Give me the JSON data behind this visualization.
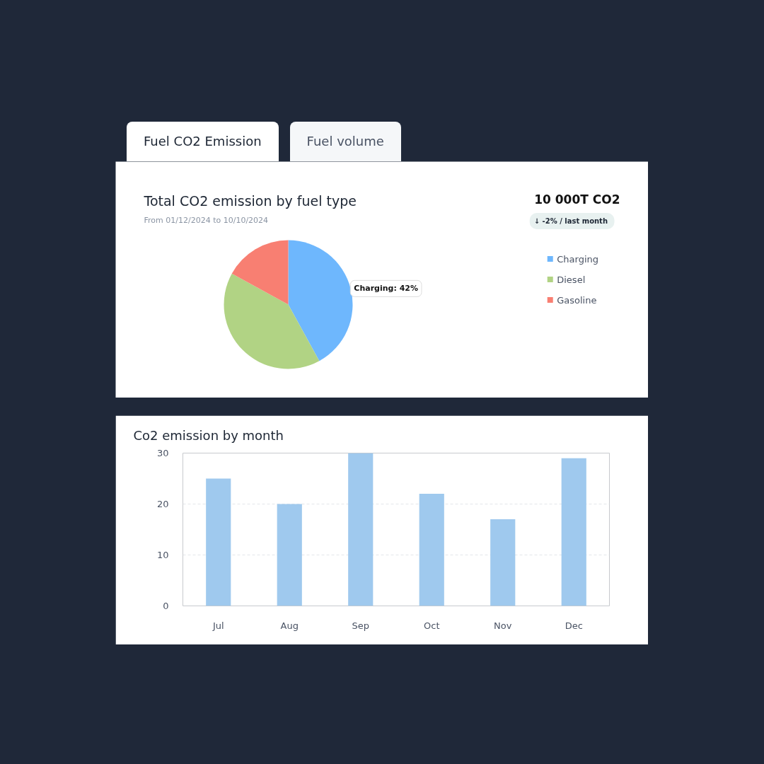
{
  "chart_data": [
    {
      "type": "pie",
      "title": "Total CO2 emission by fuel type",
      "subtitle": "From 01/12/2024 to 10/10/2024",
      "categories": [
        "Charging",
        "Diesel",
        "Gasoline"
      ],
      "values": [
        42,
        41,
        17
      ],
      "colors": [
        "#6eb7fd",
        "#b1d384",
        "#f87f72"
      ],
      "legend": "right",
      "annotations": [
        "Fuel CO2 Emission",
        "Fuel volume",
        "10 000T CO2",
        "↓  -2% / last month",
        "Charging: 42%"
      ]
    },
    {
      "type": "bar",
      "title": "Co2 emission by month",
      "categories": [
        "Jul",
        "Aug",
        "Sep",
        "Oct",
        "Nov",
        "Dec"
      ],
      "values": [
        25,
        20,
        30,
        22,
        17,
        29
      ],
      "color": "#9fc9ee",
      "ylim": [
        0,
        30
      ],
      "yticks": [
        0,
        10,
        20,
        30
      ],
      "grid": "y"
    }
  ]
}
